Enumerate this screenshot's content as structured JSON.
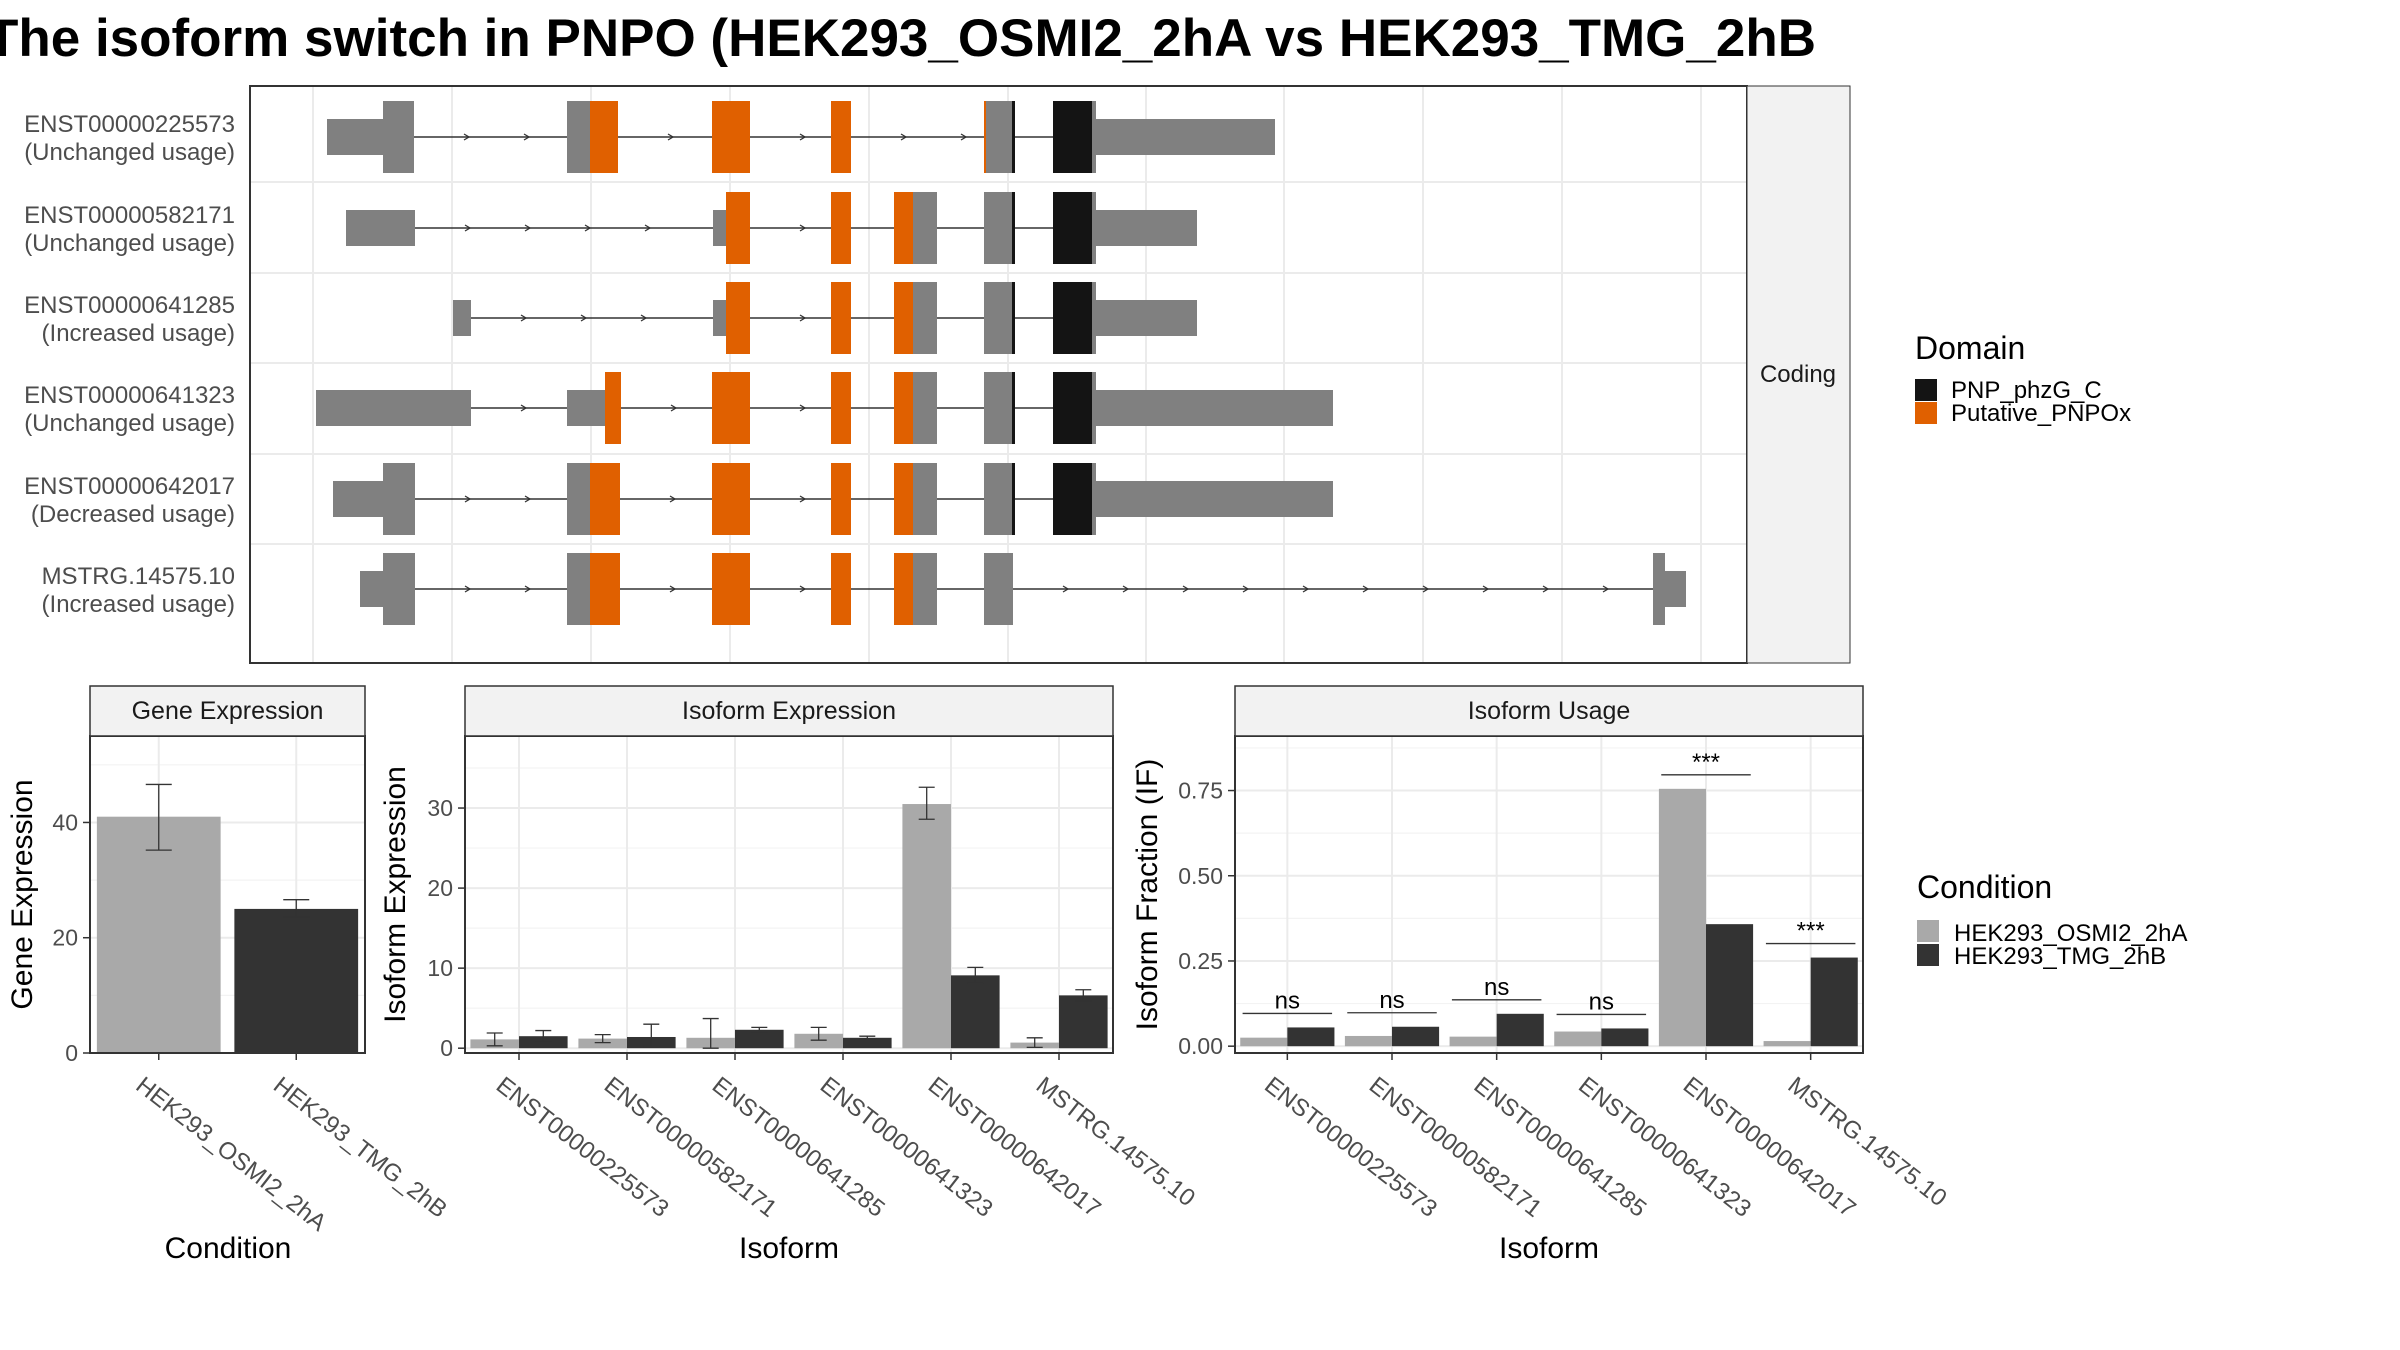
{
  "title": "The isoform switch in PNPO (HEK293_OSMI2_2hA vs HEK293_TMG_2hB",
  "colors": {
    "exon": "#808080",
    "pnp_domain": "#141414",
    "pnpox_domain": "#E06000",
    "cond_a": "#A9A9A9",
    "cond_b": "#333333",
    "grid": "#EBEBEB",
    "strip": "#F2F2F2"
  },
  "structure_panel": {
    "strip_label": "Coding",
    "isoforms": [
      {
        "id": "ENST00000225573",
        "usage": "(Unchanged usage)"
      },
      {
        "id": "ENST00000582171",
        "usage": "(Unchanged usage)"
      },
      {
        "id": "ENST00000641285",
        "usage": "(Increased usage)"
      },
      {
        "id": "ENST00000641323",
        "usage": "(Unchanged usage)"
      },
      {
        "id": "ENST00000642017",
        "usage": "(Decreased usage)"
      },
      {
        "id": "MSTRG.14575.10",
        "usage": "(Increased usage)"
      }
    ]
  },
  "legend_domain": {
    "title": "Domain",
    "items": [
      {
        "label": "PNP_phzG_C",
        "color": "#141414"
      },
      {
        "label": "Putative_PNPOx",
        "color": "#E06000"
      }
    ]
  },
  "legend_condition": {
    "title": "Condition",
    "items": [
      {
        "label": "HEK293_OSMI2_2hA",
        "color": "#A9A9A9"
      },
      {
        "label": "HEK293_TMG_2hB",
        "color": "#333333"
      }
    ]
  },
  "chart_data": [
    {
      "type": "bar",
      "title": "Gene Expression",
      "xlabel": "Condition",
      "ylabel": "Gene Expression",
      "categories": [
        "HEK293_OSMI2_2hA",
        "HEK293_TMG_2hB"
      ],
      "values": [
        41,
        25
      ],
      "errors": [
        [
          35.2,
          46.6
        ],
        [
          23.6,
          26.6
        ]
      ],
      "yticks": [
        0,
        20,
        40
      ],
      "ylim": [
        0,
        55
      ]
    },
    {
      "type": "bar",
      "title": "Isoform Expression",
      "xlabel": "Isoform",
      "ylabel": "Isoform Expression",
      "categories": [
        "ENST00000225573",
        "ENST00000582171",
        "ENST00000641285",
        "ENST00000641323",
        "ENST00000642017",
        "MSTRG.14575.10"
      ],
      "series": [
        {
          "name": "HEK293_OSMI2_2hA",
          "values": [
            1.1,
            1.2,
            1.3,
            1.8,
            30.5,
            0.7
          ],
          "errors": [
            [
              0.3,
              1.9
            ],
            [
              0.7,
              1.7
            ],
            [
              0.0,
              3.7
            ],
            [
              1.0,
              2.6
            ],
            [
              28.6,
              32.6
            ],
            [
              0.1,
              1.3
            ]
          ]
        },
        {
          "name": "HEK293_TMG_2hB",
          "values": [
            1.5,
            1.4,
            2.3,
            1.3,
            9.1,
            6.6
          ],
          "errors": [
            [
              0.8,
              2.2
            ],
            [
              0.2,
              3.0
            ],
            [
              2.0,
              2.6
            ],
            [
              1.1,
              1.5
            ],
            [
              8.1,
              10.1
            ],
            [
              5.9,
              7.3
            ]
          ]
        }
      ],
      "yticks": [
        0,
        10,
        20,
        30
      ],
      "ylim": [
        -0.6,
        39
      ]
    },
    {
      "type": "bar",
      "title": "Isoform Usage",
      "xlabel": "Isoform",
      "ylabel": "Isoform Fraction (IF)",
      "categories": [
        "ENST00000225573",
        "ENST00000582171",
        "ENST00000641285",
        "ENST00000641323",
        "ENST00000642017",
        "MSTRG.14575.10"
      ],
      "series": [
        {
          "name": "HEK293_OSMI2_2hA",
          "values": [
            0.025,
            0.03,
            0.028,
            0.043,
            0.755,
            0.015
          ]
        },
        {
          "name": "HEK293_TMG_2hB",
          "values": [
            0.055,
            0.057,
            0.095,
            0.052,
            0.358,
            0.26
          ]
        }
      ],
      "significance": [
        "ns",
        "ns",
        "ns",
        "ns",
        "***",
        "***"
      ],
      "yticks": [
        0.0,
        0.25,
        0.5,
        0.75
      ],
      "ytick_labels": [
        "0.00",
        "0.25",
        "0.50",
        "0.75"
      ],
      "ylim": [
        -0.02,
        0.91
      ]
    }
  ]
}
